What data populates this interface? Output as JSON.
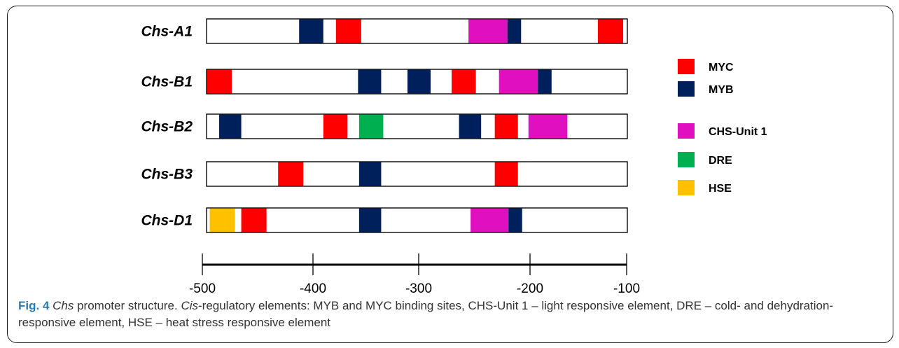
{
  "figure": {
    "label": "Fig. 4",
    "title_italic": "Chs",
    "title_rest": " promoter structure. ",
    "desc_italic": "Cis",
    "desc_rest": "-regulatory elements: MYB and MYC binding sites, CHS-Unit 1 – light responsive element, DRE – cold- and dehydration-responsive element, HSE – heat stress responsive element"
  },
  "chart_data": {
    "type": "promoter-map",
    "x_range": [
      -500,
      -100
    ],
    "axis_ticks": [
      -500,
      -400,
      -300,
      -200,
      -100
    ],
    "element_types": [
      {
        "key": "MYC",
        "label": "MYC",
        "color": "#ff0000"
      },
      {
        "key": "MYB",
        "label": "MYB",
        "color": "#00205b"
      },
      {
        "key": "CHS",
        "label": "CHS-Unit 1",
        "color": "#e010c0"
      },
      {
        "key": "DRE",
        "label": "DRE",
        "color": "#00b050"
      },
      {
        "key": "HSE",
        "label": "HSE",
        "color": "#ffc000"
      }
    ],
    "promoters": [
      {
        "name": "Chs-A1",
        "elements": [
          {
            "type": "MYB",
            "start": -412,
            "end": -389
          },
          {
            "type": "MYC",
            "start": -377,
            "end": -353
          },
          {
            "type": "CHS",
            "start": -251,
            "end": -214
          },
          {
            "type": "MYB",
            "start": -214,
            "end": -201
          },
          {
            "type": "MYC",
            "start": -128,
            "end": -104
          }
        ]
      },
      {
        "name": "Chs-B1",
        "elements": [
          {
            "type": "MYC",
            "start": -500,
            "end": -476
          },
          {
            "type": "MYB",
            "start": -356,
            "end": -334
          },
          {
            "type": "MYB",
            "start": -309,
            "end": -287
          },
          {
            "type": "MYC",
            "start": -267,
            "end": -244
          },
          {
            "type": "CHS",
            "start": -222,
            "end": -185
          },
          {
            "type": "MYB",
            "start": -185,
            "end": -172
          }
        ]
      },
      {
        "name": "Chs-B2",
        "elements": [
          {
            "type": "MYB",
            "start": -488,
            "end": -467
          },
          {
            "type": "MYC",
            "start": -389,
            "end": -366
          },
          {
            "type": "DRE",
            "start": -355,
            "end": -332
          },
          {
            "type": "MYB",
            "start": -260,
            "end": -239
          },
          {
            "type": "MYC",
            "start": -226,
            "end": -204
          },
          {
            "type": "CHS",
            "start": -194,
            "end": -157
          }
        ]
      },
      {
        "name": "Chs-B3",
        "elements": [
          {
            "type": "MYC",
            "start": -432,
            "end": -408
          },
          {
            "type": "MYB",
            "start": -355,
            "end": -334
          },
          {
            "type": "MYC",
            "start": -226,
            "end": -204
          }
        ]
      },
      {
        "name": "Chs-D1",
        "elements": [
          {
            "type": "HSE",
            "start": -497,
            "end": -473
          },
          {
            "type": "MYC",
            "start": -467,
            "end": -443
          },
          {
            "type": "MYB",
            "start": -355,
            "end": -334
          },
          {
            "type": "CHS",
            "start": -249,
            "end": -213
          },
          {
            "type": "MYB",
            "start": -213,
            "end": -200
          }
        ]
      }
    ]
  }
}
